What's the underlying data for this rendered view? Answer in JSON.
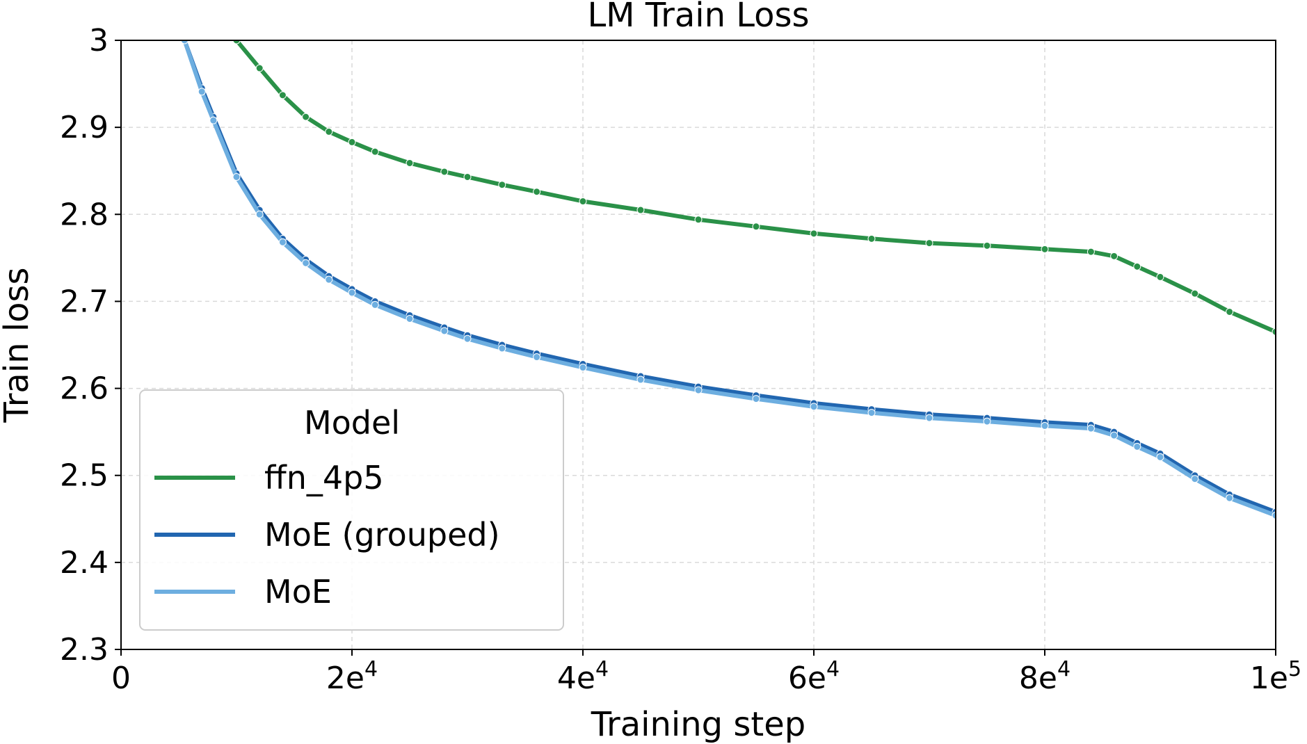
{
  "chart_data": {
    "type": "line",
    "title": "LM Train Loss",
    "xlabel": "Training step",
    "ylabel": "Train loss",
    "xlim": [
      0,
      100000
    ],
    "ylim": [
      2.3,
      3.0
    ],
    "x_ticks": [
      {
        "value": 0,
        "base": "0",
        "exp": ""
      },
      {
        "value": 20000,
        "base": "2e",
        "exp": "4"
      },
      {
        "value": 40000,
        "base": "4e",
        "exp": "4"
      },
      {
        "value": 60000,
        "base": "6e",
        "exp": "4"
      },
      {
        "value": 80000,
        "base": "8e",
        "exp": "4"
      },
      {
        "value": 100000,
        "base": "1e",
        "exp": "5"
      }
    ],
    "y_ticks": [
      {
        "value": 2.3,
        "label": "2.3"
      },
      {
        "value": 2.4,
        "label": "2.4"
      },
      {
        "value": 2.5,
        "label": "2.5"
      },
      {
        "value": 2.6,
        "label": "2.6"
      },
      {
        "value": 2.7,
        "label": "2.7"
      },
      {
        "value": 2.8,
        "label": "2.8"
      },
      {
        "value": 2.9,
        "label": "2.9"
      },
      {
        "value": 3.0,
        "label": "3"
      }
    ],
    "grid": true,
    "legend": {
      "title": "Model",
      "placement": "lower-left"
    },
    "series": [
      {
        "name": "ffn_4p5",
        "color": "#2a9148",
        "x": [
          10000,
          12000,
          14000,
          16000,
          18000,
          20000,
          22000,
          25000,
          28000,
          30000,
          33000,
          36000,
          40000,
          45000,
          50000,
          55000,
          60000,
          65000,
          70000,
          75000,
          80000,
          84000,
          86000,
          88000,
          90000,
          93000,
          96000,
          100000
        ],
        "y": [
          3.0,
          2.968,
          2.937,
          2.912,
          2.895,
          2.883,
          2.872,
          2.859,
          2.849,
          2.843,
          2.834,
          2.826,
          2.815,
          2.805,
          2.794,
          2.786,
          2.778,
          2.772,
          2.767,
          2.764,
          2.76,
          2.757,
          2.752,
          2.74,
          2.728,
          2.709,
          2.688,
          2.665
        ]
      },
      {
        "name": "MoE (grouped)",
        "color": "#2166b0",
        "x": [
          5500,
          7000,
          8000,
          10000,
          12000,
          14000,
          16000,
          18000,
          20000,
          22000,
          25000,
          28000,
          30000,
          33000,
          36000,
          40000,
          45000,
          50000,
          55000,
          60000,
          65000,
          70000,
          75000,
          80000,
          84000,
          86000,
          88000,
          90000,
          93000,
          96000,
          100000
        ],
        "y": [
          3.0,
          2.945,
          2.912,
          2.847,
          2.805,
          2.772,
          2.748,
          2.729,
          2.714,
          2.7,
          2.684,
          2.67,
          2.661,
          2.65,
          2.64,
          2.628,
          2.614,
          2.602,
          2.592,
          2.583,
          2.576,
          2.57,
          2.566,
          2.561,
          2.558,
          2.55,
          2.537,
          2.525,
          2.5,
          2.478,
          2.458
        ]
      },
      {
        "name": "MoE",
        "color": "#6daee0",
        "x": [
          5500,
          7000,
          8000,
          10000,
          12000,
          14000,
          16000,
          18000,
          20000,
          22000,
          25000,
          28000,
          30000,
          33000,
          36000,
          40000,
          45000,
          50000,
          55000,
          60000,
          65000,
          70000,
          75000,
          80000,
          84000,
          86000,
          88000,
          90000,
          93000,
          96000,
          100000
        ],
        "y": [
          3.0,
          2.941,
          2.908,
          2.843,
          2.8,
          2.768,
          2.744,
          2.725,
          2.71,
          2.696,
          2.68,
          2.666,
          2.657,
          2.646,
          2.636,
          2.624,
          2.61,
          2.598,
          2.588,
          2.579,
          2.572,
          2.566,
          2.562,
          2.557,
          2.554,
          2.546,
          2.533,
          2.521,
          2.496,
          2.474,
          2.454
        ]
      }
    ]
  }
}
